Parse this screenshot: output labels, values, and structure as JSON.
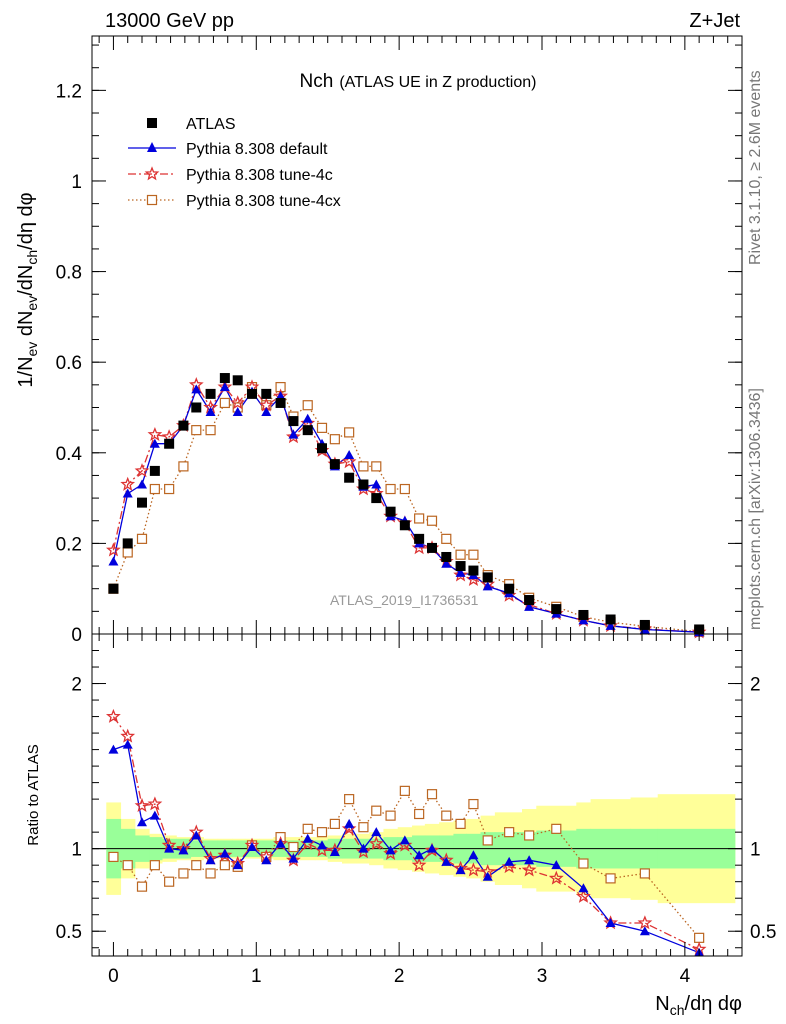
{
  "header": {
    "left": "13000 GeV pp",
    "right": "Z+Jet"
  },
  "title": {
    "main": "Nch",
    "sub": "(ATLAS UE in Z production)"
  },
  "side_text": {
    "rivet": "Rivet 3.1.10, ≥ 2.6M events",
    "source": "mcplots.cern.ch [arXiv:1306.3436]"
  },
  "watermark": "ATLAS_2019_I1736531",
  "axes": {
    "ylabel_main": "1/N_ev dN_ev/dN_ch/dη dφ",
    "ylabel_ratio": "Ratio to ATLAS",
    "xlabel": "N_ch/dη dφ"
  },
  "colors": {
    "atlas": "#000000",
    "default": "#0000dd",
    "tune4c": "#dd3333",
    "tune4cx": "#bb6622",
    "band_inner": "#99ff99",
    "band_outer": "#ffff99"
  },
  "chart_data": [
    {
      "type": "scatter",
      "panel": "main",
      "xlim": [
        -0.15,
        4.4
      ],
      "ylim": [
        0,
        1.32
      ],
      "xticks": [
        0,
        1,
        2,
        3,
        4
      ],
      "yticks": [
        0,
        0.2,
        0.4,
        0.6,
        0.8,
        1,
        1.2
      ],
      "ytick_labels": [
        "0",
        "0.2",
        "0.4",
        "0.6",
        "0.8",
        "1",
        "1.2"
      ],
      "x": [
        0.0,
        0.1,
        0.2,
        0.29,
        0.39,
        0.49,
        0.58,
        0.68,
        0.78,
        0.87,
        0.97,
        1.07,
        1.17,
        1.26,
        1.36,
        1.46,
        1.55,
        1.65,
        1.75,
        1.84,
        1.94,
        2.04,
        2.14,
        2.23,
        2.33,
        2.43,
        2.52,
        2.62,
        2.77,
        2.91,
        3.1,
        3.29,
        3.48,
        3.72,
        4.1
      ],
      "series": [
        {
          "name": "ATLAS",
          "style": "square",
          "values": [
            0.1,
            0.2,
            0.29,
            0.36,
            0.42,
            0.46,
            0.5,
            0.53,
            0.565,
            0.56,
            0.53,
            0.53,
            0.51,
            0.47,
            0.45,
            0.41,
            0.375,
            0.345,
            0.33,
            0.3,
            0.27,
            0.24,
            0.21,
            0.19,
            0.17,
            0.15,
            0.14,
            0.125,
            0.1,
            0.075,
            0.055,
            0.042,
            0.032,
            0.02,
            0.01
          ]
        },
        {
          "name": "Pythia 8.308 default",
          "style": "line-triangle",
          "values": [
            0.16,
            0.31,
            0.33,
            0.42,
            0.42,
            0.46,
            0.54,
            0.49,
            0.545,
            0.49,
            0.535,
            0.49,
            0.525,
            0.44,
            0.475,
            0.42,
            0.37,
            0.395,
            0.325,
            0.33,
            0.26,
            0.25,
            0.2,
            0.19,
            0.155,
            0.135,
            0.13,
            0.105,
            0.09,
            0.06,
            0.045,
            0.03,
            0.018,
            0.01,
            0.004
          ]
        },
        {
          "name": "Pythia 8.308 tune-4c",
          "style": "dashdot-star",
          "values": [
            0.185,
            0.33,
            0.36,
            0.44,
            0.435,
            0.46,
            0.55,
            0.5,
            0.545,
            0.51,
            0.545,
            0.505,
            0.525,
            0.435,
            0.465,
            0.405,
            0.375,
            0.38,
            0.32,
            0.31,
            0.26,
            0.245,
            0.19,
            0.19,
            0.16,
            0.13,
            0.12,
            0.11,
            0.085,
            0.065,
            0.045,
            0.03,
            0.018,
            0.011,
            0.004
          ]
        },
        {
          "name": "Pythia 8.308 tune-4cx",
          "style": "dotted-opensquare",
          "values": [
            0.1,
            0.18,
            0.21,
            0.32,
            0.32,
            0.37,
            0.45,
            0.45,
            0.51,
            0.5,
            0.545,
            0.505,
            0.545,
            0.48,
            0.505,
            0.455,
            0.43,
            0.445,
            0.37,
            0.37,
            0.32,
            0.32,
            0.255,
            0.25,
            0.21,
            0.175,
            0.175,
            0.13,
            0.11,
            0.08,
            0.06,
            0.038,
            0.026,
            0.017,
            0.005
          ]
        }
      ]
    },
    {
      "type": "line",
      "panel": "ratio",
      "xlim": [
        -0.15,
        4.4
      ],
      "ylim": [
        0.35,
        2.3
      ],
      "yticks": [
        0.5,
        1,
        2
      ],
      "ytick_labels": [
        "0.5",
        "1",
        "2"
      ],
      "ylabel": "Ratio to ATLAS",
      "x": [
        0.0,
        0.1,
        0.2,
        0.29,
        0.39,
        0.49,
        0.58,
        0.68,
        0.78,
        0.87,
        0.97,
        1.07,
        1.17,
        1.26,
        1.36,
        1.46,
        1.55,
        1.65,
        1.75,
        1.84,
        1.94,
        2.04,
        2.14,
        2.23,
        2.33,
        2.43,
        2.52,
        2.62,
        2.77,
        2.91,
        3.1,
        3.29,
        3.48,
        3.72,
        4.1
      ],
      "band_edges": [
        -0.05,
        0.05,
        0.15,
        0.25,
        0.34,
        0.44,
        0.54,
        0.63,
        0.73,
        0.83,
        0.92,
        1.02,
        1.12,
        1.21,
        1.31,
        1.41,
        1.5,
        1.6,
        1.7,
        1.79,
        1.89,
        1.99,
        2.09,
        2.18,
        2.28,
        2.38,
        2.47,
        2.57,
        2.67,
        2.86,
        2.96,
        3.24,
        3.34,
        3.62,
        3.81,
        4.35
      ],
      "band_inner": [
        0.18,
        0.12,
        0.08,
        0.07,
        0.06,
        0.06,
        0.05,
        0.05,
        0.05,
        0.05,
        0.05,
        0.05,
        0.05,
        0.05,
        0.05,
        0.05,
        0.06,
        0.06,
        0.06,
        0.06,
        0.07,
        0.07,
        0.08,
        0.08,
        0.08,
        0.09,
        0.09,
        0.1,
        0.1,
        0.1,
        0.11,
        0.12,
        0.12,
        0.12,
        0.12
      ],
      "band_outer": [
        0.28,
        0.18,
        0.12,
        0.09,
        0.08,
        0.07,
        0.07,
        0.06,
        0.06,
        0.06,
        0.06,
        0.06,
        0.07,
        0.07,
        0.07,
        0.07,
        0.08,
        0.09,
        0.09,
        0.1,
        0.12,
        0.13,
        0.14,
        0.15,
        0.16,
        0.17,
        0.18,
        0.2,
        0.22,
        0.24,
        0.26,
        0.28,
        0.3,
        0.31,
        0.33
      ],
      "series": [
        {
          "name": "Pythia 8.308 default",
          "values": [
            1.6,
            1.63,
            1.16,
            1.2,
            1.0,
            0.99,
            1.08,
            0.93,
            0.97,
            0.9,
            1.01,
            0.93,
            1.03,
            0.94,
            1.06,
            1.02,
            0.98,
            1.15,
            1.0,
            1.1,
            0.99,
            1.05,
            0.96,
            1.0,
            0.92,
            0.87,
            0.96,
            0.83,
            0.92,
            0.93,
            0.9,
            0.76,
            0.55,
            0.5,
            0.37
          ]
        },
        {
          "name": "Pythia 8.308 tune-4c",
          "values": [
            1.8,
            1.68,
            1.26,
            1.27,
            1.02,
            1.0,
            1.1,
            0.94,
            0.96,
            0.91,
            1.02,
            0.95,
            1.03,
            0.93,
            1.03,
            0.99,
            0.99,
            1.12,
            0.98,
            1.03,
            0.97,
            1.02,
            0.9,
            0.99,
            0.93,
            0.88,
            0.87,
            0.86,
            0.89,
            0.87,
            0.82,
            0.71,
            0.55,
            0.55,
            0.39
          ]
        },
        {
          "name": "Pythia 8.308 tune-4cx",
          "values": [
            0.95,
            0.9,
            0.77,
            0.9,
            0.8,
            0.85,
            0.9,
            0.85,
            0.9,
            0.89,
            1.02,
            0.95,
            1.07,
            1.01,
            1.12,
            1.1,
            1.15,
            1.3,
            1.13,
            1.23,
            1.2,
            1.35,
            1.21,
            1.33,
            1.2,
            1.15,
            1.27,
            1.05,
            1.1,
            1.08,
            1.12,
            0.91,
            0.82,
            0.85,
            0.46
          ]
        }
      ]
    }
  ],
  "legend": [
    {
      "label": "ATLAS",
      "key": "atlas"
    },
    {
      "label": "Pythia 8.308 default",
      "key": "default"
    },
    {
      "label": "Pythia 8.308 tune-4c",
      "key": "tune4c"
    },
    {
      "label": "Pythia 8.308 tune-4cx",
      "key": "tune4cx"
    }
  ]
}
